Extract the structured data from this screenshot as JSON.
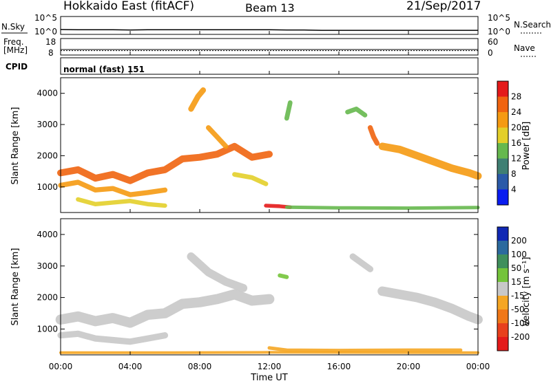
{
  "header": {
    "title": "Hokkaido East (fitACF)",
    "beam": "Beam 13",
    "date": "21/Sep/2017"
  },
  "colors": {
    "ink": "#000000",
    "background": "#ffffff",
    "ground_scatter": "#b4b4b4"
  },
  "chart_data": [
    {
      "type": "line",
      "panel": "noise",
      "left_label": "N.Sky",
      "right_label": "N.Search",
      "left_ticks": [
        "10^5",
        "10^0"
      ],
      "right_ticks": [
        "10^5",
        "10^0"
      ],
      "y_scale": "log",
      "ylim": [
        1,
        100000
      ],
      "x": [
        0,
        1,
        2,
        3,
        4,
        5,
        6,
        7,
        8,
        9,
        10,
        11,
        12,
        13,
        14,
        15,
        16,
        17,
        18,
        19,
        20,
        21,
        22,
        23,
        24
      ],
      "series": [
        {
          "values": [
            6,
            5,
            5,
            5,
            4,
            5,
            5,
            5,
            5,
            5,
            5,
            5,
            5,
            4,
            4,
            3,
            3,
            3,
            3,
            3,
            3,
            3,
            3,
            3,
            3
          ]
        }
      ]
    },
    {
      "type": "line",
      "panel": "frequency",
      "left_label": "Freq.",
      "left_unit": "[MHz]",
      "right_label": "Nave",
      "left_ticks": [
        "18",
        "8"
      ],
      "right_ticks": [
        "60",
        "0"
      ],
      "ylim": [
        8,
        18
      ],
      "x": [
        0,
        24
      ],
      "series": [
        {
          "values": [
            11,
            11
          ]
        },
        {
          "values": [
            10.2,
            10.2
          ]
        }
      ]
    },
    {
      "type": "table",
      "panel": "cpid",
      "label": "CPID",
      "mode": "normal (fast) 151"
    },
    {
      "type": "heatmap",
      "panel": "power",
      "ylabel": "Slant Range [km]",
      "y_ticks": [
        "1000",
        "2000",
        "3000",
        "4000"
      ],
      "ylim": [
        180,
        4500
      ],
      "colorbar_label": "Power [dB]",
      "colorbar_ticks": [
        "4",
        "8",
        "12",
        "16",
        "20",
        "24",
        "28"
      ],
      "colorbar_colors": [
        "#0a1cf0",
        "#2a5aa8",
        "#3f7f73",
        "#66b84e",
        "#e3cf2a",
        "#f59a12",
        "#f06410",
        "#e41a1a"
      ],
      "bands": [
        {
          "points": [
            [
              0,
              1450
            ],
            [
              1,
              1550
            ],
            [
              2,
              1280
            ],
            [
              3,
              1400
            ],
            [
              4,
              1200
            ],
            [
              5,
              1450
            ],
            [
              6,
              1550
            ],
            [
              7,
              1900
            ],
            [
              8,
              1950
            ],
            [
              9,
              2050
            ],
            [
              10,
              2300
            ],
            [
              11,
              1950
            ],
            [
              12,
              2050
            ]
          ],
          "level": 26,
          "width": 220
        },
        {
          "points": [
            [
              0,
              1050
            ],
            [
              1,
              1150
            ],
            [
              2,
              900
            ],
            [
              3,
              950
            ],
            [
              4,
              750
            ],
            [
              5,
              820
            ],
            [
              6,
              900
            ]
          ],
          "level": 22,
          "width": 160
        },
        {
          "points": [
            [
              1,
              600
            ],
            [
              2,
              450
            ],
            [
              3,
              500
            ],
            [
              4,
              550
            ],
            [
              5,
              450
            ],
            [
              6,
              400
            ]
          ],
          "level": 18,
          "width": 140
        },
        {
          "points": [
            [
              11.8,
              400
            ],
            [
              12.6,
              380
            ],
            [
              13.2,
              350
            ]
          ],
          "level": 28,
          "width": 120
        },
        {
          "points": [
            [
              13,
              350
            ],
            [
              16,
              330
            ],
            [
              20,
              320
            ],
            [
              24,
              340
            ]
          ],
          "level": 14,
          "width": 110
        },
        {
          "points": [
            [
              18.5,
              2300
            ],
            [
              19.5,
              2200
            ],
            [
              20.5,
              2000
            ],
            [
              21.5,
              1800
            ],
            [
              22.5,
              1600
            ],
            [
              23.5,
              1450
            ],
            [
              24,
              1350
            ]
          ],
          "level": 22,
          "width": 240
        },
        {
          "points": [
            [
              17.8,
              2900
            ],
            [
              18,
              2600
            ],
            [
              18.2,
              2400
            ]
          ],
          "level": 26,
          "width": 160
        },
        {
          "points": [
            [
              13,
              3200
            ],
            [
              13.2,
              3700
            ]
          ],
          "level": 14,
          "width": 150
        },
        {
          "points": [
            [
              7.5,
              3500
            ],
            [
              7.9,
              3900
            ],
            [
              8.2,
              4100
            ]
          ],
          "level": 20,
          "width": 180
        },
        {
          "points": [
            [
              8.5,
              2900
            ],
            [
              9,
              2600
            ],
            [
              9.5,
              2300
            ]
          ],
          "level": 22,
          "width": 160
        },
        {
          "points": [
            [
              10,
              1400
            ],
            [
              11,
              1300
            ],
            [
              11.8,
              1100
            ]
          ],
          "level": 18,
          "width": 150
        },
        {
          "points": [
            [
              16.5,
              3400
            ],
            [
              17,
              3500
            ],
            [
              17.5,
              3300
            ]
          ],
          "level": 12,
          "width": 150
        }
      ]
    },
    {
      "type": "heatmap",
      "panel": "velocity",
      "ylabel": "Slant Range [km]",
      "y_ticks": [
        "1000",
        "2000",
        "3000",
        "4000"
      ],
      "ylim": [
        180,
        4500
      ],
      "colorbar_label": "Velocity [m s⁻¹]",
      "colorbar_ticks": [
        "200",
        "100",
        "50",
        "15",
        "-15",
        "-50",
        "-100",
        "-200"
      ],
      "colorbar_colors": [
        "#1028b4",
        "#2b6a9e",
        "#3f8f5c",
        "#74c43a",
        "#c8c8c8",
        "#f5a623",
        "#f07818",
        "#e8401c",
        "#e41a1a"
      ],
      "bands": [
        {
          "points": [
            [
              0,
              1300
            ],
            [
              1,
              1400
            ],
            [
              2,
              1250
            ],
            [
              3,
              1350
            ],
            [
              4,
              1200
            ],
            [
              5,
              1450
            ],
            [
              6,
              1500
            ],
            [
              7,
              1800
            ],
            [
              8,
              1850
            ],
            [
              9,
              1950
            ],
            [
              10,
              2100
            ],
            [
              11,
              1900
            ],
            [
              12,
              1950
            ]
          ],
          "level": 0,
          "width": 320
        },
        {
          "points": [
            [
              0,
              800
            ],
            [
              1,
              850
            ],
            [
              2,
              700
            ],
            [
              3,
              650
            ],
            [
              4,
              600
            ],
            [
              5,
              700
            ],
            [
              6,
              800
            ]
          ],
          "level": 0,
          "width": 200
        },
        {
          "points": [
            [
              7.5,
              3300
            ],
            [
              8.5,
              2800
            ],
            [
              9.5,
              2500
            ],
            [
              10.5,
              2300
            ]
          ],
          "level": 0,
          "width": 260
        },
        {
          "points": [
            [
              12.6,
              2700
            ],
            [
              13,
              2650
            ]
          ],
          "level": 40,
          "width": 130
        },
        {
          "points": [
            [
              18.5,
              2200
            ],
            [
              19.5,
              2100
            ],
            [
              20.5,
              2000
            ],
            [
              21.5,
              1850
            ],
            [
              22.5,
              1650
            ],
            [
              23.5,
              1400
            ],
            [
              24,
              1300
            ]
          ],
          "level": 0,
          "width": 300
        },
        {
          "points": [
            [
              12,
              400
            ],
            [
              13,
              330
            ],
            [
              16,
              320
            ],
            [
              20,
              330
            ],
            [
              23,
              330
            ]
          ],
          "level": -45,
          "width": 110
        },
        {
          "points": [
            [
              0,
              250
            ],
            [
              6,
              250
            ],
            [
              12,
              260
            ],
            [
              24,
              250
            ]
          ],
          "level": -30,
          "width": 80
        },
        {
          "points": [
            [
              16.8,
              3300
            ],
            [
              17.3,
              3100
            ],
            [
              17.8,
              2900
            ]
          ],
          "level": 0,
          "width": 200
        }
      ]
    }
  ],
  "time_axis": {
    "label": "Time UT",
    "ticks": [
      "00:00",
      "04:00",
      "08:00",
      "12:00",
      "16:00",
      "20:00",
      "00:00"
    ],
    "xlim": [
      0,
      24
    ]
  }
}
